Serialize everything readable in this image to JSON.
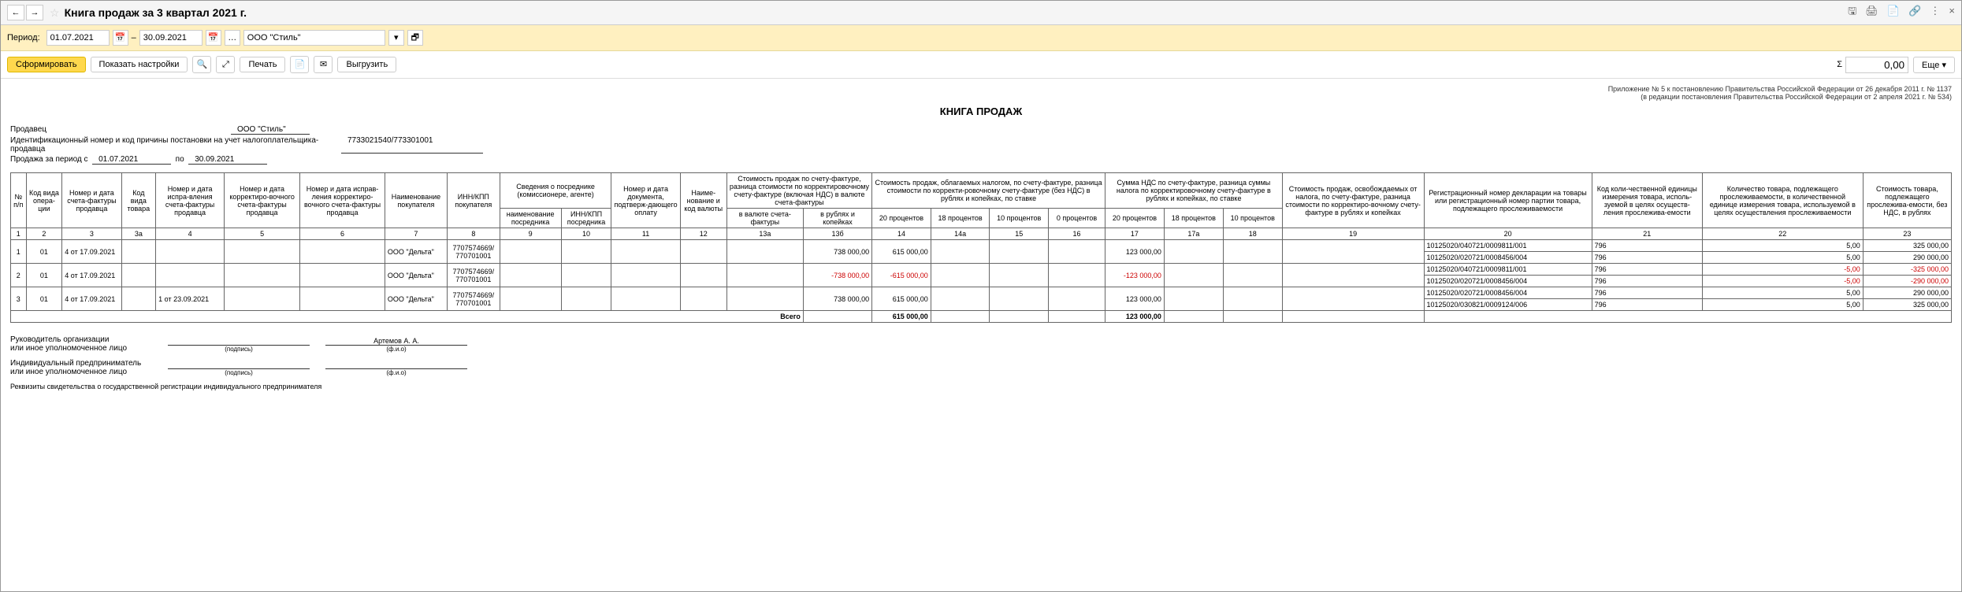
{
  "title": "Книга продаж за 3 квартал 2021 г.",
  "period_label": "Период:",
  "date_from": "01.07.2021",
  "date_to": "30.09.2021",
  "org": "ООО \"Стиль\"",
  "btn_form": "Сформировать",
  "btn_settings": "Показать настройки",
  "btn_print": "Печать",
  "btn_export": "Выгрузить",
  "sum_label": "Σ",
  "sum_val": "0,00",
  "btn_more": "Еще",
  "legal1": "Приложение № 5 к постановлению Правительства Российской Федерации от 26 декабря 2011 г. № 1137",
  "legal2": "(в редакции постановления Правительства Российской Федерации от 2 апреля 2021 г. № 534)",
  "report_title": "КНИГА ПРОДАЖ",
  "seller_label": "Продавец",
  "seller": "ООО \"Стиль\"",
  "inn_label": "Идентификационный номер и код причины постановки на учет налогоплательщика-продавца",
  "inn": "7733021540/773301001",
  "period_row_label": "Продажа за период с",
  "period_from": "01.07.2021",
  "period_to_label": "по",
  "period_to": "30.09.2021",
  "h": {
    "c1": "№ п/п",
    "c2": "Код вида опера-ции",
    "c3": "Номер и дата счета-фактуры продавца",
    "c3a": "Код вида товара",
    "c4": "Номер и дата испра-вления счета-фактуры продавца",
    "c5": "Номер и дата корректиро-вочного счета-фактуры продавца",
    "c6": "Номер и дата исправ-ления корректиро-вочного счета-фактуры продавца",
    "c7": "Наименование покупателя",
    "c8": "ИНН/КПП покупателя",
    "c9g": "Сведения о посреднике (комиссионере, агенте)",
    "c9": "наименование посредника",
    "c10": "ИНН/КПП посредника",
    "c11": "Номер и дата документа, подтверж-дающего оплату",
    "c12": "Наиме-нование и код валюты",
    "c13g": "Стоимость продаж по счету-фактуре, разница стоимости по корректировочному счету-фактуре (включая НДС) в валюте счета-фактуры",
    "c13a": "в валюте счета-фактуры",
    "c13b": "в рублях и копейках",
    "c14g": "Стоимость продаж, облагаемых налогом, по счету-фактуре, разница стоимости по корректи-ровочному счету-фактуре (без НДС) в рублях и копейках, по ставке",
    "c14": "20 процентов",
    "c14a": "18 процентов",
    "c15": "10 процентов",
    "c16": "0 процентов",
    "c17g": "Сумма НДС по счету-фактуре, разница суммы налога по корректировочному счету-фактуре в рублях и копейках, по ставке",
    "c17": "20 процентов",
    "c17a": "18 процентов",
    "c18": "10 процентов",
    "c19": "Стоимость продаж, освобождаемых от налога, по счету-фактуре, разница стоимости по корректиро-вочному счету-фактуре в рублях и копейках",
    "c20": "Регистрационный номер декларации на товары или регистрационный номер партии товара, подлежащего прослеживаемости",
    "c21": "Код коли-чественной единицы измерения товара, исполь-зуемой в целях осуществ-ления прослежива-емости",
    "c22": "Количество товара, подлежащего прослеживаемости, в количественной единице измерения товара, используемой в целях осуществления прослеживаемости",
    "c23": "Стоимость товара, подлежащего прослежива-емости, без НДС, в рублях"
  },
  "nums": [
    "1",
    "2",
    "3",
    "3а",
    "4",
    "5",
    "6",
    "7",
    "8",
    "9",
    "10",
    "11",
    "12",
    "13а",
    "13б",
    "14",
    "14а",
    "15",
    "16",
    "17",
    "17а",
    "18",
    "19",
    "20",
    "21",
    "22",
    "23"
  ],
  "rows": [
    {
      "n": "1",
      "op": "01",
      "sf": "4 от 17.09.2021",
      "buyer": "ООО \"Дельта\"",
      "inn": "7707574669/\n770701001",
      "s13b": "738 000,00",
      "s14": "615 000,00",
      "s17": "123 000,00",
      "trace": [
        {
          "c20": "10125020/040721/0009811/001",
          "c21": "796",
          "c22": "5,00",
          "c23": "325 000,00"
        },
        {
          "c20": "10125020/020721/0008456/004",
          "c21": "796",
          "c22": "5,00",
          "c23": "290 000,00"
        }
      ]
    },
    {
      "n": "2",
      "op": "01",
      "sf": "4 от 17.09.2021",
      "buyer": "ООО \"Дельта\"",
      "inn": "7707574669/\n770701001",
      "s13b": "-738 000,00",
      "s14": "-615 000,00",
      "s17": "-123 000,00",
      "neg": true,
      "trace": [
        {
          "c20": "10125020/040721/0009811/001",
          "c21": "796",
          "c22": "-5,00",
          "c23": "-325 000,00",
          "neg": true
        },
        {
          "c20": "10125020/020721/0008456/004",
          "c21": "796",
          "c22": "-5,00",
          "c23": "-290 000,00",
          "neg": true
        }
      ]
    },
    {
      "n": "3",
      "op": "01",
      "sf": "4 от 17.09.2021",
      "corr": "1 от 23.09.2021",
      "buyer": "ООО \"Дельта\"",
      "inn": "7707574669/\n770701001",
      "s13b": "738 000,00",
      "s14": "615 000,00",
      "s17": "123 000,00",
      "trace": [
        {
          "c20": "10125020/020721/0008456/004",
          "c21": "796",
          "c22": "5,00",
          "c23": "290 000,00"
        },
        {
          "c20": "10125020/030821/0009124/006",
          "c21": "796",
          "c22": "5,00",
          "c23": "325 000,00"
        }
      ]
    }
  ],
  "total_label": "Всего",
  "total_s14": "615 000,00",
  "total_s17": "123 000,00",
  "sign1": "Руководитель организации\nили иное уполномоченное лицо",
  "sign2": "Индивидуальный предприниматель\nили иное уполномоченное лицо",
  "sign_name": "Артемов А. А.",
  "sign_pod": "(подпись)",
  "sign_fio": "(ф.и.о)",
  "sign3": "Реквизиты свидетельства о государственной регистрации индивидуального предпринимателя"
}
